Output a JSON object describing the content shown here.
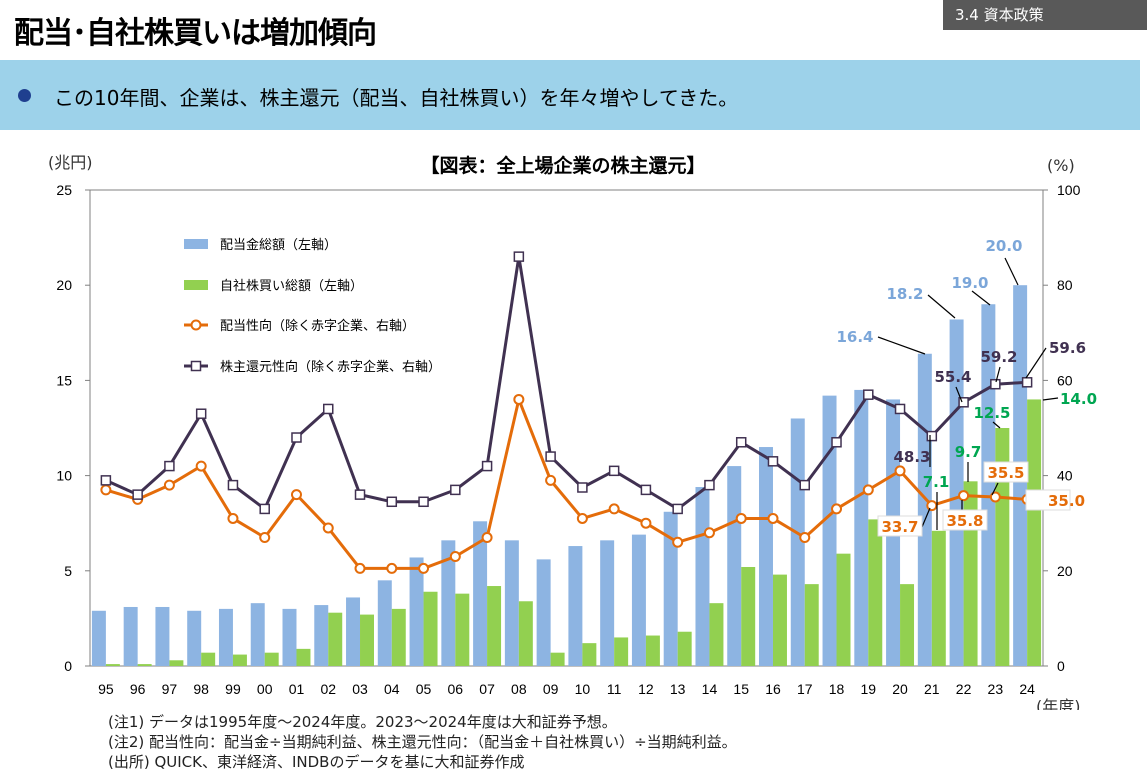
{
  "header": {
    "title": "配当･自社株買いは増加傾向",
    "section_tag": "3.4 資本政策"
  },
  "banner": {
    "text": "この10年間、企業は、株主還元（配当、自社株買い）を年々増やしてきた。"
  },
  "colors": {
    "dividend_bar": "#8db4e2",
    "buyback_bar": "#92d050",
    "payout_line": "#e46c0a",
    "return_line": "#403151",
    "banner_bg": "#9dd2ea",
    "tag_bg": "#595959"
  },
  "chart_data": {
    "type": "bar",
    "title": "【図表：全上場企業の株主還元】",
    "left_axis_unit": "(兆円)",
    "right_axis_unit": "(%)",
    "x_unit": "(年度)",
    "categories": [
      "95",
      "96",
      "97",
      "98",
      "99",
      "00",
      "01",
      "02",
      "03",
      "04",
      "05",
      "06",
      "07",
      "08",
      "09",
      "10",
      "11",
      "12",
      "13",
      "14",
      "15",
      "16",
      "17",
      "18",
      "19",
      "20",
      "21",
      "22",
      "23",
      "24"
    ],
    "ylim_left": [
      0,
      25
    ],
    "yticks_left": [
      0,
      5,
      10,
      15,
      20,
      25
    ],
    "ylim_right": [
      0,
      100
    ],
    "yticks_right": [
      0,
      20,
      40,
      60,
      80,
      100
    ],
    "grid": false,
    "legend_position": "top-left",
    "series": [
      {
        "name": "配当金総額（左軸）",
        "kind": "bar",
        "axis": "left",
        "values": [
          2.9,
          3.1,
          3.1,
          2.9,
          3.0,
          3.3,
          3.0,
          3.2,
          3.6,
          4.5,
          5.7,
          6.6,
          7.6,
          6.6,
          5.6,
          6.3,
          6.6,
          6.9,
          8.1,
          9.4,
          10.5,
          11.5,
          13.0,
          14.2,
          14.5,
          14.0,
          16.4,
          18.2,
          19.0,
          20.0
        ]
      },
      {
        "name": "自社株買い総額（左軸）",
        "kind": "bar",
        "axis": "left",
        "values": [
          0.1,
          0.1,
          0.3,
          0.7,
          0.6,
          0.7,
          0.9,
          2.8,
          2.7,
          3.0,
          3.9,
          3.8,
          4.2,
          3.4,
          0.7,
          1.2,
          1.5,
          1.6,
          1.8,
          3.3,
          5.2,
          4.8,
          4.3,
          5.9,
          7.7,
          4.3,
          7.1,
          9.7,
          12.5,
          14.0
        ]
      },
      {
        "name": "配当性向（除く赤字企業、右軸）",
        "kind": "line",
        "axis": "right",
        "values": [
          37,
          35,
          38,
          42,
          31,
          27,
          36,
          29,
          20.5,
          20.5,
          20.5,
          23,
          27,
          56,
          39,
          31,
          33,
          30,
          26,
          28,
          31,
          31,
          27,
          33,
          37,
          41,
          33.7,
          35.8,
          35.5,
          35.0
        ]
      },
      {
        "name": "株主還元性向（除く赤字企業、右軸）",
        "kind": "line",
        "axis": "right",
        "values": [
          39,
          36,
          42,
          53,
          38,
          33,
          48,
          54,
          36,
          34.5,
          34.5,
          37,
          42,
          86,
          44,
          37.5,
          41,
          37,
          33,
          38,
          47,
          43,
          38,
          47,
          57,
          54,
          48.3,
          55.4,
          59.2,
          59.6
        ]
      }
    ],
    "value_labels": {
      "dividend": [
        {
          "category": "21",
          "text": "16.4"
        },
        {
          "category": "22",
          "text": "18.2"
        },
        {
          "category": "23",
          "text": "19.0"
        },
        {
          "category": "24",
          "text": "20.0"
        }
      ],
      "buyback": [
        {
          "category": "21",
          "text": "7.1"
        },
        {
          "category": "22",
          "text": "9.7"
        },
        {
          "category": "23",
          "text": "12.5"
        },
        {
          "category": "24",
          "text": "14.0"
        }
      ],
      "payout": [
        {
          "category": "21",
          "text": "33.7"
        },
        {
          "category": "22",
          "text": "35.8"
        },
        {
          "category": "23",
          "text": "35.5"
        },
        {
          "category": "24",
          "text": "35.0"
        }
      ],
      "return": [
        {
          "category": "21",
          "text": "48.3"
        },
        {
          "category": "22",
          "text": "55.4"
        },
        {
          "category": "23",
          "text": "59.2"
        },
        {
          "category": "24",
          "text": "59.6"
        }
      ]
    }
  },
  "notes": [
    "(注1) データは1995年度～2024年度。2023～2024年度は大和証券予想。",
    "(注2) 配当性向：配当金÷当期純利益、株主還元性向：（配当金＋自社株買い）÷当期純利益。",
    "(出所) QUICK、東洋経済、INDBのデータを基に大和証券作成"
  ]
}
